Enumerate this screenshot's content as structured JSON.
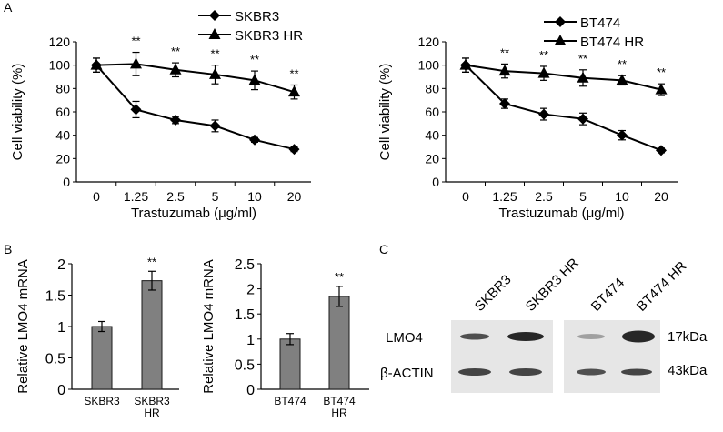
{
  "panel_labels": {
    "a": "A",
    "b": "B",
    "c": "C"
  },
  "chart_data": [
    {
      "id": "a-left",
      "type": "line",
      "ylabel": "Cell viability (%)",
      "xlabel": "Trastuzumab (μg/ml)",
      "categories": [
        "0",
        "1.25",
        "2.5",
        "5",
        "10",
        "20"
      ],
      "ylim": [
        0,
        120
      ],
      "yticks": [
        0,
        20,
        40,
        60,
        80,
        100,
        120
      ],
      "legend_position": "top",
      "series": [
        {
          "name": "SKBR3",
          "marker": "diamond",
          "values": [
            100,
            62,
            53,
            48,
            36,
            28
          ],
          "errors": [
            6,
            7,
            3,
            5,
            2,
            2
          ]
        },
        {
          "name": "SKBR3 HR",
          "marker": "triangle",
          "values": [
            100,
            101,
            96,
            92,
            87,
            77
          ],
          "errors": [
            6,
            10,
            6,
            8,
            8,
            6
          ]
        }
      ],
      "annotations": [
        {
          "x": "1.25",
          "text": "**"
        },
        {
          "x": "2.5",
          "text": "**"
        },
        {
          "x": "5",
          "text": "**"
        },
        {
          "x": "10",
          "text": "**"
        },
        {
          "x": "20",
          "text": "**"
        }
      ]
    },
    {
      "id": "a-right",
      "type": "line",
      "ylabel": "Cell viability (%)",
      "xlabel": "Trastuzumab (μg/ml)",
      "categories": [
        "0",
        "1.25",
        "2.5",
        "5",
        "10",
        "20"
      ],
      "ylim": [
        0,
        120
      ],
      "yticks": [
        0,
        20,
        40,
        60,
        80,
        100,
        120
      ],
      "legend_position": "top-right",
      "series": [
        {
          "name": "BT474",
          "marker": "diamond",
          "values": [
            100,
            67,
            58,
            54,
            40,
            27
          ],
          "errors": [
            6,
            4,
            5,
            5,
            4,
            2
          ]
        },
        {
          "name": "BT474 HR",
          "marker": "triangle",
          "values": [
            100,
            95,
            93,
            89,
            87,
            79
          ],
          "errors": [
            6,
            6,
            6,
            7,
            4,
            5
          ]
        }
      ],
      "annotations": [
        {
          "x": "1.25",
          "text": "**"
        },
        {
          "x": "2.5",
          "text": "**"
        },
        {
          "x": "5",
          "text": "**"
        },
        {
          "x": "10",
          "text": "**"
        },
        {
          "x": "20",
          "text": "**"
        }
      ]
    },
    {
      "id": "b-left",
      "type": "bar",
      "ylabel": "Relative LMO4 mRNA",
      "categories": [
        [
          "SKBR3"
        ],
        [
          "SKBR3",
          "HR"
        ]
      ],
      "values": [
        1.0,
        1.73
      ],
      "errors": [
        0.08,
        0.15
      ],
      "ylim": [
        0,
        2
      ],
      "yticks": [
        "0",
        "0.5",
        "1",
        "1.5",
        "2"
      ],
      "annotations": [
        {
          "index": 1,
          "text": "**"
        }
      ]
    },
    {
      "id": "b-right",
      "type": "bar",
      "ylabel": "Relative LMO4 mRNA",
      "categories": [
        [
          "BT474"
        ],
        [
          "BT474",
          "HR"
        ]
      ],
      "values": [
        1.0,
        1.85
      ],
      "errors": [
        0.11,
        0.2
      ],
      "ylim": [
        0,
        2.5
      ],
      "yticks": [
        "0",
        "0.5",
        "1",
        "1.5",
        "2",
        "2.5"
      ],
      "annotations": [
        {
          "index": 1,
          "text": "**"
        }
      ]
    }
  ],
  "western_blot": {
    "lanes": [
      "SKBR3",
      "SKBR3 HR",
      "BT474",
      "BT474 HR"
    ],
    "proteins": [
      {
        "name": "LMO4",
        "size": "17kDa"
      },
      {
        "name": "β-ACTIN",
        "size": "43kDa"
      }
    ]
  },
  "colors": {
    "line": "#000000",
    "bar_fill": "#808080",
    "bar_stroke": "#1a1a1a",
    "blot_bg": "#e6e6e6",
    "band": "#1c1c1c"
  }
}
